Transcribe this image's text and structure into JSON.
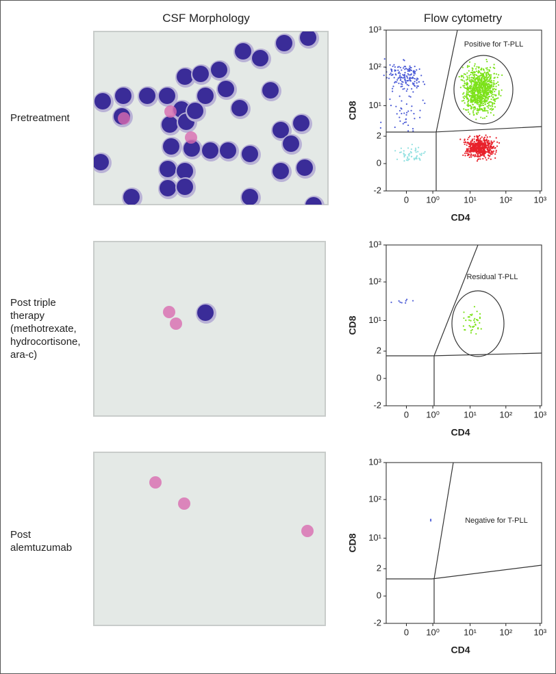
{
  "headers": [
    "CSF Morphology",
    "Flow cytometry"
  ],
  "rows": [
    {
      "label": "Pretreatment",
      "gate_label": "Positive for T-PLL"
    },
    {
      "label": "Post triple therapy (methotrexate, hydrocortisone, ara-c)",
      "gate_label": "Residual T-PLL"
    },
    {
      "label": "Post alemtuzumab",
      "gate_label": "Negative for T-PLL"
    }
  ],
  "axes": {
    "x_label": "CD4",
    "y_label": "CD8",
    "yticks": [
      "10³",
      "10²",
      "10¹",
      "2",
      "0",
      "-2"
    ],
    "xticks": [
      "0",
      "10⁰",
      "10¹",
      "10²",
      "10³"
    ]
  }
}
